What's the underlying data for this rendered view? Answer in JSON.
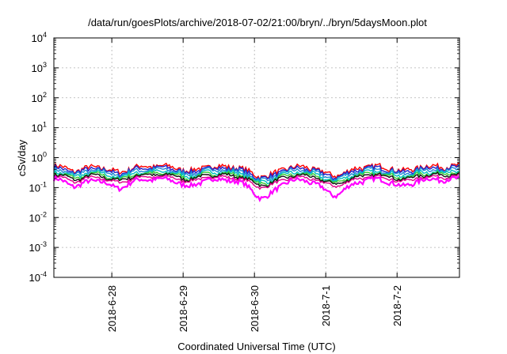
{
  "chart_data": {
    "type": "line",
    "title": "/data/run/goesPlots/archive/2018-07-02/21:00/bryn/../bryn/5daysMoon.plot",
    "xlabel": "Coordinated Universal Time (UTC)",
    "ylabel": "cSv/day",
    "yscale": "log",
    "ylim": [
      0.0001,
      10000
    ],
    "yticks": [
      {
        "value": 0.0001,
        "exp": "-4"
      },
      {
        "value": 0.001,
        "exp": "-3"
      },
      {
        "value": 0.01,
        "exp": "-2"
      },
      {
        "value": 0.1,
        "exp": "-1"
      },
      {
        "value": 1,
        "exp": "0"
      },
      {
        "value": 10,
        "exp": "1"
      },
      {
        "value": 100,
        "exp": "2"
      },
      {
        "value": 1000,
        "exp": "3"
      },
      {
        "value": 10000,
        "exp": "4"
      }
    ],
    "tick_base": "10",
    "xlim": [
      "2018-06-27T04:30",
      "2018-07-02T21:00"
    ],
    "xticks": [
      {
        "label": "2018-6-28",
        "date": "2018-06-28T00:00"
      },
      {
        "label": "2018-6-29",
        "date": "2018-06-29T00:00"
      },
      {
        "label": "2018-6-30",
        "date": "2018-06-30T00:00"
      },
      {
        "label": "2018-7-1",
        "date": "2018-07-01T00:00"
      },
      {
        "label": "2018-7-2",
        "date": "2018-07-02T00:00"
      }
    ],
    "grid": true,
    "dips": [
      {
        "date": "2018-06-27T12:00",
        "width_hours": 8,
        "depth": 0.3
      },
      {
        "date": "2018-06-28T02:00",
        "width_hours": 10,
        "depth": 0.35
      },
      {
        "date": "2018-06-29T02:00",
        "width_hours": 9,
        "depth": 0.3
      },
      {
        "date": "2018-06-30T03:00",
        "width_hours": 14,
        "depth": 0.55
      },
      {
        "date": "2018-07-01T03:00",
        "width_hours": 14,
        "depth": 0.5
      },
      {
        "date": "2018-07-02T02:00",
        "width_hours": 9,
        "depth": 0.3
      }
    ],
    "series": [
      {
        "color": "#ff0000",
        "base": 0.52,
        "amp": 0.35
      },
      {
        "color": "#2222cc",
        "base": 0.46,
        "amp": 0.32
      },
      {
        "color": "#1f8ad6",
        "base": 0.4,
        "amp": 0.28
      },
      {
        "color": "#00c0c0",
        "base": 0.34,
        "amp": 0.25
      },
      {
        "color": "#33cc33",
        "base": 0.3,
        "amp": 0.22
      },
      {
        "color": "#111111",
        "base": 0.27,
        "amp": 0.2
      },
      {
        "color": "#e0008a",
        "base": 0.23,
        "amp": 0.18
      },
      {
        "color": "#ff00ff",
        "base": 0.19,
        "amp": 0.3
      }
    ]
  }
}
